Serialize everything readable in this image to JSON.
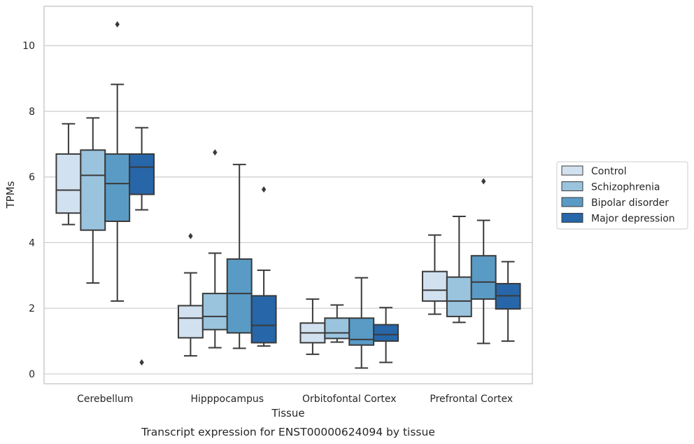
{
  "chart_data": {
    "type": "boxplot",
    "caption": "Transcript expression for ENST00000624094 by tissue",
    "xlabel": "Tissue",
    "ylabel": "TPMs",
    "ylim": [
      -0.3,
      11.2
    ],
    "yticks": [
      0,
      2,
      4,
      6,
      8,
      10
    ],
    "grid": true,
    "legend_position": "right",
    "categories": [
      "Cerebellum",
      "Hipppocampus",
      "Orbitofontal Cortex",
      "Prefrontal Cortex"
    ],
    "series": [
      {
        "name": "Control",
        "color": "#d2e1f0",
        "boxes": [
          {
            "whislo": 4.55,
            "q1": 4.9,
            "med": 5.6,
            "q3": 6.7,
            "whishi": 7.62,
            "fliers": []
          },
          {
            "whislo": 0.55,
            "q1": 1.1,
            "med": 1.7,
            "q3": 2.08,
            "whishi": 3.08,
            "fliers": [
              4.2
            ]
          },
          {
            "whislo": 0.6,
            "q1": 0.95,
            "med": 1.25,
            "q3": 1.55,
            "whishi": 2.28,
            "fliers": []
          },
          {
            "whislo": 1.82,
            "q1": 2.22,
            "med": 2.55,
            "q3": 3.12,
            "whishi": 4.23,
            "fliers": []
          }
        ]
      },
      {
        "name": "Schizophrenia",
        "color": "#9ac3de",
        "boxes": [
          {
            "whislo": 2.77,
            "q1": 4.38,
            "med": 6.05,
            "q3": 6.82,
            "whishi": 7.8,
            "fliers": []
          },
          {
            "whislo": 0.8,
            "q1": 1.35,
            "med": 1.75,
            "q3": 2.45,
            "whishi": 3.68,
            "fliers": [
              6.75
            ]
          },
          {
            "whislo": 0.97,
            "q1": 1.08,
            "med": 1.25,
            "q3": 1.7,
            "whishi": 2.1,
            "fliers": []
          },
          {
            "whislo": 1.57,
            "q1": 1.75,
            "med": 2.22,
            "q3": 2.95,
            "whishi": 4.8,
            "fliers": []
          }
        ]
      },
      {
        "name": "Bipolar disorder",
        "color": "#5a9bc6",
        "boxes": [
          {
            "whislo": 2.22,
            "q1": 4.65,
            "med": 5.8,
            "q3": 6.7,
            "whishi": 8.82,
            "fliers": [
              10.65
            ]
          },
          {
            "whislo": 0.78,
            "q1": 1.25,
            "med": 2.45,
            "q3": 3.5,
            "whishi": 6.38,
            "fliers": []
          },
          {
            "whislo": 0.18,
            "q1": 0.88,
            "med": 1.05,
            "q3": 1.7,
            "whishi": 2.93,
            "fliers": []
          },
          {
            "whislo": 0.93,
            "q1": 2.28,
            "med": 2.8,
            "q3": 3.6,
            "whishi": 4.68,
            "fliers": [
              5.87
            ]
          }
        ]
      },
      {
        "name": "Major depression",
        "color": "#2766a8",
        "boxes": [
          {
            "whislo": 5.0,
            "q1": 5.47,
            "med": 6.3,
            "q3": 6.7,
            "whishi": 7.5,
            "fliers": [
              0.35
            ]
          },
          {
            "whislo": 0.85,
            "q1": 0.95,
            "med": 1.48,
            "q3": 2.38,
            "whishi": 3.16,
            "fliers": [
              5.62
            ]
          },
          {
            "whislo": 0.35,
            "q1": 1.0,
            "med": 1.2,
            "q3": 1.5,
            "whishi": 2.02,
            "fliers": []
          },
          {
            "whislo": 1.0,
            "q1": 1.98,
            "med": 2.38,
            "q3": 2.75,
            "whishi": 3.42,
            "fliers": []
          }
        ]
      }
    ]
  }
}
